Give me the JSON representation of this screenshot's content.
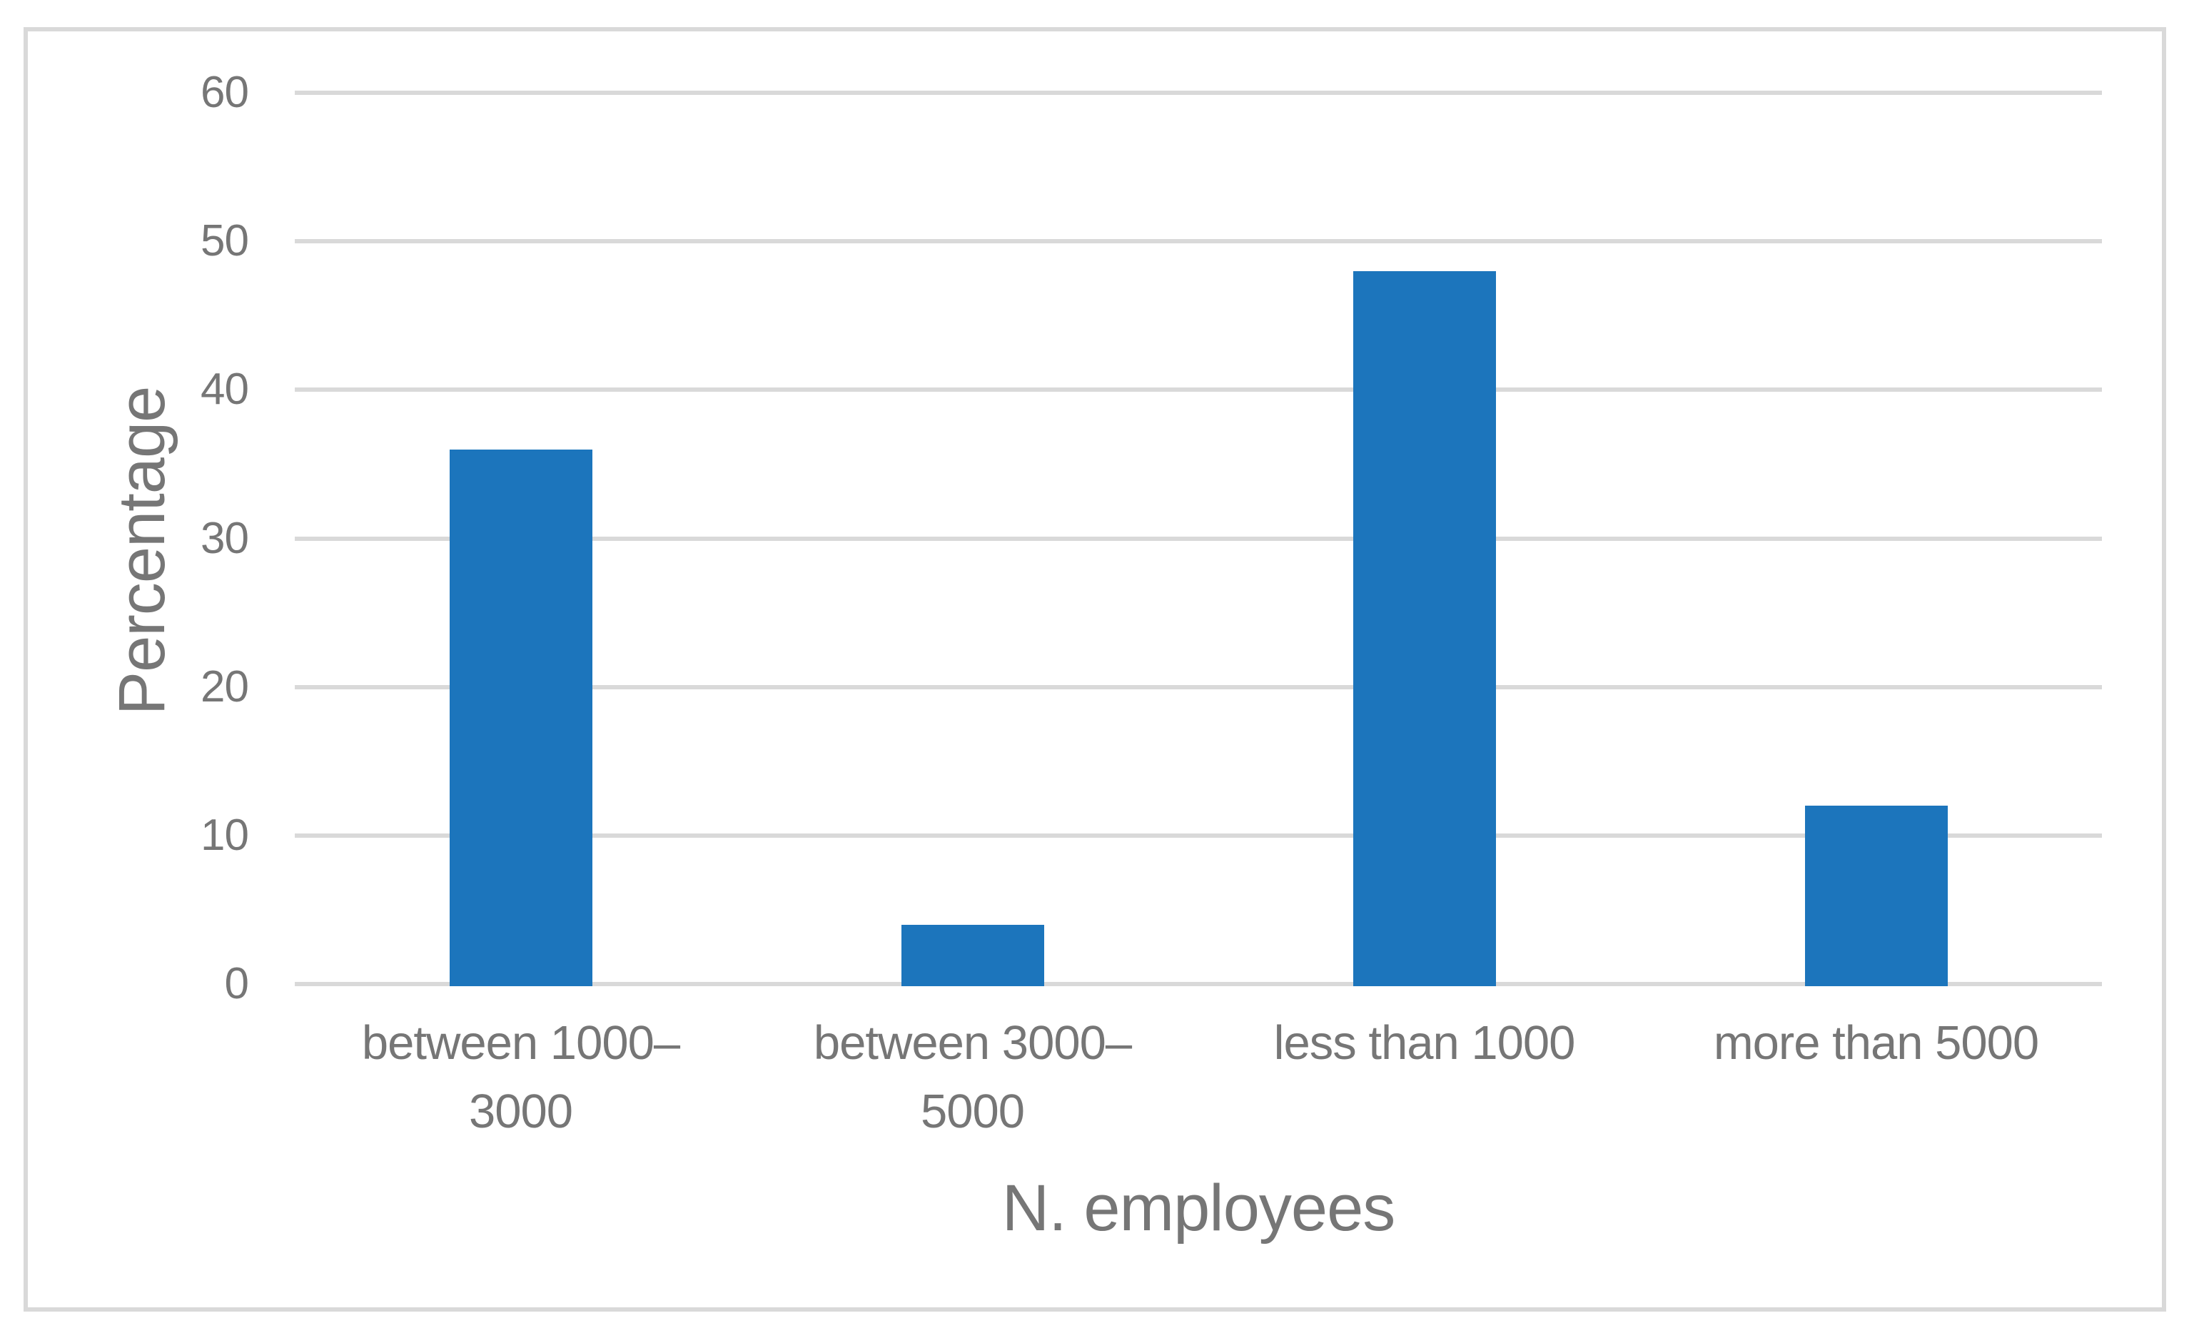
{
  "figure": {
    "background_color": "#FFFFFF",
    "border_color": "#D9D9D9"
  },
  "chart_data": {
    "type": "bar",
    "title": "",
    "categories": [
      "between 1000–3000",
      "between 3000–5000",
      "less than 1000",
      "more than 5000"
    ],
    "category_lines": [
      [
        "between 1000–",
        "3000"
      ],
      [
        "between 3000–",
        "5000"
      ],
      [
        "less than 1000"
      ],
      [
        "more than 5000"
      ]
    ],
    "values": [
      36,
      4,
      48,
      12
    ],
    "xlabel": "N. employees",
    "ylabel": "Percentage",
    "ylim": [
      0,
      60
    ],
    "yticks": [
      0,
      10,
      20,
      30,
      40,
      50,
      60
    ],
    "grid": "horizontal",
    "legend": "none",
    "bar_color": "#1C75BC",
    "gridline_color": "#D9D9D9",
    "text_color": "#767676"
  }
}
